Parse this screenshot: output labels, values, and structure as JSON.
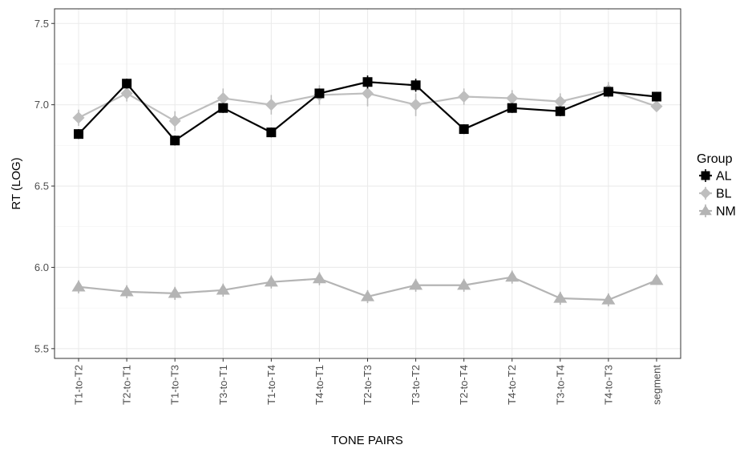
{
  "chart_data": {
    "type": "line",
    "xlabel": "TONE PAIRS",
    "ylabel": "RT (LOG)",
    "categories": [
      "T1-to-T2",
      "T2-to-T1",
      "T1-to-T3",
      "T3-to-T1",
      "T1-to-T4",
      "T4-to-T1",
      "T2-to-T3",
      "T3-to-T2",
      "T2-to-T4",
      "T4-to-T2",
      "T3-to-T4",
      "T4-to-T3",
      "segment"
    ],
    "ylim": [
      5.44,
      7.59
    ],
    "yticks": [
      "5.5",
      "6.0",
      "6.5",
      "7.0",
      "7.5"
    ],
    "grid": true,
    "legend": {
      "title": "Group",
      "position": "right"
    },
    "series": [
      {
        "name": "AL",
        "color": "#000000",
        "marker": "square",
        "values": [
          6.82,
          7.13,
          6.78,
          6.98,
          6.83,
          7.07,
          7.14,
          7.12,
          6.85,
          6.98,
          6.96,
          7.08,
          7.05
        ],
        "errors": [
          0.03,
          0.03,
          0.03,
          0.03,
          0.03,
          0.03,
          0.04,
          0.04,
          0.03,
          0.03,
          0.03,
          0.03,
          0.02
        ]
      },
      {
        "name": "BL",
        "color": "#bebebe",
        "marker": "diamond",
        "values": [
          6.92,
          7.07,
          6.9,
          7.04,
          7.0,
          7.06,
          7.07,
          7.0,
          7.05,
          7.04,
          7.02,
          7.09,
          6.99
        ],
        "errors": [
          0.05,
          0.05,
          0.06,
          0.06,
          0.06,
          0.06,
          0.08,
          0.07,
          0.05,
          0.05,
          0.05,
          0.05,
          0.02
        ]
      },
      {
        "name": "NM",
        "color": "#b4b4b4",
        "marker": "triangle",
        "values": [
          5.88,
          5.85,
          5.84,
          5.86,
          5.91,
          5.93,
          5.82,
          5.89,
          5.89,
          5.94,
          5.81,
          5.8,
          5.92
        ],
        "errors": [
          0.04,
          0.04,
          0.04,
          0.04,
          0.04,
          0.04,
          0.04,
          0.04,
          0.04,
          0.04,
          0.04,
          0.04,
          0.02
        ]
      }
    ]
  }
}
